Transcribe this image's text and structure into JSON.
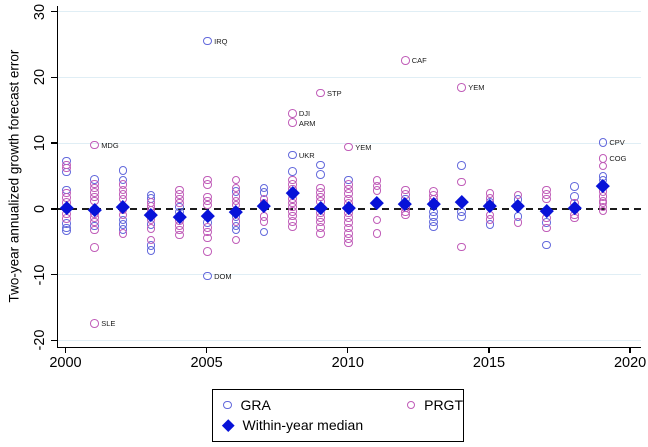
{
  "chart_data": {
    "type": "scatter",
    "title": "",
    "xlabel": "",
    "ylabel": "Two-year annualized growth forecast error",
    "axis": {
      "xlim": [
        1999.7,
        2020.35
      ],
      "ylim": [
        -21,
        30.85
      ],
      "xticks": [
        2000,
        2005,
        2010,
        2015,
        2020
      ],
      "yticks": [
        30,
        20,
        10,
        0,
        -10,
        -20
      ],
      "grid": true,
      "zero_line": "dashed"
    },
    "colors": {
      "gra": "#6268dc",
      "prgt": "#c05cb8",
      "median": "#0712d8",
      "gridline": "#e0eef5",
      "axis": "#000000",
      "zero_line": "#1c1c1c"
    },
    "legend": {
      "position": "bottom",
      "items": [
        {
          "label": "GRA",
          "marker": "circle-outline",
          "color": "#6268dc"
        },
        {
          "label": "PRGT",
          "marker": "circle-outline",
          "color": "#c05cb8"
        },
        {
          "label": "Within-year median",
          "marker": "diamond-filled",
          "color": "#0712d8"
        }
      ]
    },
    "series": [
      {
        "name": "GRA",
        "marker": "circle-outline",
        "color": "#6268dc",
        "points": [
          [
            2000,
            7.3
          ],
          [
            2000,
            5.6
          ],
          [
            2000,
            2.9
          ],
          [
            2000,
            -2.2
          ],
          [
            2000,
            -2.9
          ],
          [
            2000,
            -3.3
          ],
          [
            2001,
            4.5
          ],
          [
            2001,
            -2.6
          ],
          [
            2002,
            5.8
          ],
          [
            2002,
            4.4
          ],
          [
            2002,
            -1.7
          ],
          [
            2002,
            -2.4
          ],
          [
            2002,
            -3.1
          ],
          [
            2003,
            2.1
          ],
          [
            2003,
            1.6
          ],
          [
            2003,
            -2.4
          ],
          [
            2003,
            -5.6
          ],
          [
            2003,
            -6.3
          ],
          [
            2004,
            0.3
          ],
          [
            2004,
            -0.5
          ],
          [
            2005,
            25.5,
            "IRQ"
          ],
          [
            2005,
            -2.1
          ],
          [
            2005,
            -10.2,
            "DOM"
          ],
          [
            2006,
            2.6
          ],
          [
            2006,
            -1.2
          ],
          [
            2006,
            -2.6
          ],
          [
            2006,
            -3.2
          ],
          [
            2007,
            3.2
          ],
          [
            2007,
            2.5
          ],
          [
            2007,
            -3.5
          ],
          [
            2008,
            8.2,
            "UKR"
          ],
          [
            2008,
            5.7
          ],
          [
            2008,
            2.2
          ],
          [
            2009,
            6.7
          ],
          [
            2009,
            5.2
          ],
          [
            2010,
            4.4
          ],
          [
            2012,
            1.5
          ],
          [
            2013,
            -0.5
          ],
          [
            2013,
            -1.2
          ],
          [
            2013,
            -2.0
          ],
          [
            2013,
            -2.7
          ],
          [
            2014,
            6.6
          ],
          [
            2014,
            -0.5
          ],
          [
            2014,
            -1.2
          ],
          [
            2015,
            1.0
          ],
          [
            2015,
            -2.4
          ],
          [
            2016,
            1.4
          ],
          [
            2016,
            -1.2
          ],
          [
            2017,
            -2.1
          ],
          [
            2017,
            -5.5
          ],
          [
            2018,
            3.4
          ],
          [
            2018,
            1.9
          ],
          [
            2019,
            10.1,
            "CPV"
          ],
          [
            2019,
            4.9
          ],
          [
            2019,
            4.4
          ]
        ]
      },
      {
        "name": "PRGT",
        "marker": "circle-outline",
        "color": "#c05cb8",
        "points": [
          [
            2000,
            6.7
          ],
          [
            2000,
            6.2
          ],
          [
            2000,
            2.4
          ],
          [
            2000,
            1.7
          ],
          [
            2000,
            1.0
          ],
          [
            2000,
            -0.8
          ],
          [
            2000,
            -1.5
          ],
          [
            2001,
            9.7,
            "MDG"
          ],
          [
            2001,
            3.8
          ],
          [
            2001,
            3.2
          ],
          [
            2001,
            2.5
          ],
          [
            2001,
            1.8
          ],
          [
            2001,
            1.2
          ],
          [
            2001,
            -0.7
          ],
          [
            2001,
            -1.3
          ],
          [
            2001,
            -2.0
          ],
          [
            2001,
            -3.2
          ],
          [
            2001,
            -5.9
          ],
          [
            2001,
            -17.4,
            "SLE"
          ],
          [
            2002,
            3.7
          ],
          [
            2002,
            2.9
          ],
          [
            2002,
            2.2
          ],
          [
            2002,
            1.5
          ],
          [
            2002,
            -0.2
          ],
          [
            2002,
            -0.9
          ],
          [
            2002,
            -3.7
          ],
          [
            2003,
            1.0
          ],
          [
            2003,
            0.4
          ],
          [
            2003,
            -0.2
          ],
          [
            2003,
            -1.7
          ],
          [
            2003,
            -3.0
          ],
          [
            2003,
            -4.7
          ],
          [
            2004,
            2.9
          ],
          [
            2004,
            2.2
          ],
          [
            2004,
            1.5
          ],
          [
            2004,
            0.9
          ],
          [
            2004,
            -1.8
          ],
          [
            2004,
            -2.5
          ],
          [
            2004,
            -3.2
          ],
          [
            2004,
            -4.0
          ],
          [
            2005,
            4.4
          ],
          [
            2005,
            3.7
          ],
          [
            2005,
            1.8
          ],
          [
            2005,
            1.2
          ],
          [
            2005,
            0.6
          ],
          [
            2005,
            -2.8
          ],
          [
            2005,
            -3.5
          ],
          [
            2005,
            -4.4
          ],
          [
            2005,
            -6.5
          ],
          [
            2006,
            4.4
          ],
          [
            2006,
            3.2
          ],
          [
            2006,
            1.9
          ],
          [
            2006,
            1.2
          ],
          [
            2006,
            0.6
          ],
          [
            2006,
            -1.9
          ],
          [
            2006,
            -4.7
          ],
          [
            2007,
            1.4
          ],
          [
            2007,
            0.8
          ],
          [
            2007,
            -1.2
          ],
          [
            2007,
            -1.9
          ],
          [
            2008,
            14.5,
            "DJI"
          ],
          [
            2008,
            13.1,
            "ARM"
          ],
          [
            2008,
            4.4
          ],
          [
            2008,
            3.7
          ],
          [
            2008,
            3.0
          ],
          [
            2008,
            1.5
          ],
          [
            2008,
            0.9
          ],
          [
            2008,
            0.3
          ],
          [
            2008,
            -0.4
          ],
          [
            2008,
            -1.1
          ],
          [
            2008,
            -1.9
          ],
          [
            2008,
            -2.7
          ],
          [
            2009,
            17.6,
            "STP"
          ],
          [
            2009,
            3.2
          ],
          [
            2009,
            2.5
          ],
          [
            2009,
            1.8
          ],
          [
            2009,
            1.1
          ],
          [
            2009,
            -0.6
          ],
          [
            2009,
            -1.3
          ],
          [
            2009,
            -2.0
          ],
          [
            2009,
            -2.8
          ],
          [
            2009,
            -3.7
          ],
          [
            2010,
            9.4,
            "YEM"
          ],
          [
            2010,
            3.7
          ],
          [
            2010,
            3.0
          ],
          [
            2010,
            2.3
          ],
          [
            2010,
            1.5
          ],
          [
            2010,
            0.8
          ],
          [
            2010,
            -0.6
          ],
          [
            2010,
            -1.3
          ],
          [
            2010,
            -2.1
          ],
          [
            2010,
            -2.9
          ],
          [
            2010,
            -3.7
          ],
          [
            2010,
            -4.5
          ],
          [
            2010,
            -5.2
          ],
          [
            2011,
            4.3
          ],
          [
            2011,
            3.5
          ],
          [
            2011,
            2.8
          ],
          [
            2011,
            -1.7
          ],
          [
            2011,
            -3.7
          ],
          [
            2012,
            22.6,
            "CAF"
          ],
          [
            2012,
            2.9
          ],
          [
            2012,
            2.2
          ],
          [
            2012,
            0.2
          ],
          [
            2012,
            -0.5
          ],
          [
            2012,
            -0.9
          ],
          [
            2013,
            2.6
          ],
          [
            2013,
            2.0
          ],
          [
            2013,
            1.4
          ],
          [
            2014,
            18.5,
            "YEM"
          ],
          [
            2014,
            4.1
          ],
          [
            2014,
            -5.8
          ],
          [
            2015,
            2.3
          ],
          [
            2015,
            1.6
          ],
          [
            2015,
            -0.9
          ],
          [
            2015,
            -1.6
          ],
          [
            2016,
            2.1
          ],
          [
            2016,
            -2.1
          ],
          [
            2017,
            2.9
          ],
          [
            2017,
            2.2
          ],
          [
            2017,
            1.5
          ],
          [
            2017,
            -1.4
          ],
          [
            2017,
            -2.9
          ],
          [
            2018,
            0.9
          ],
          [
            2018,
            -0.9
          ],
          [
            2018,
            -1.4
          ],
          [
            2019,
            7.7,
            "COG"
          ],
          [
            2019,
            6.5
          ],
          [
            2019,
            2.6
          ],
          [
            2019,
            1.9
          ],
          [
            2019,
            1.2
          ],
          [
            2019,
            0.9
          ],
          [
            2019,
            0.3
          ],
          [
            2019,
            -0.3
          ]
        ]
      },
      {
        "name": "Within-year median",
        "marker": "diamond-filled",
        "color": "#0712d8",
        "points": [
          [
            2000,
            0.1
          ],
          [
            2001,
            -0.1
          ],
          [
            2002,
            0.3
          ],
          [
            2003,
            -0.9
          ],
          [
            2004,
            -1.2
          ],
          [
            2005,
            -1.0
          ],
          [
            2006,
            -0.4
          ],
          [
            2007,
            0.4
          ],
          [
            2008,
            2.4
          ],
          [
            2009,
            0.2
          ],
          [
            2010,
            0.1
          ],
          [
            2011,
            1.0
          ],
          [
            2012,
            0.8
          ],
          [
            2013,
            0.8
          ],
          [
            2014,
            1.1
          ],
          [
            2015,
            0.5
          ],
          [
            2016,
            0.5
          ],
          [
            2017,
            -0.3
          ],
          [
            2018,
            0.2
          ],
          [
            2019,
            3.5
          ]
        ]
      }
    ]
  }
}
